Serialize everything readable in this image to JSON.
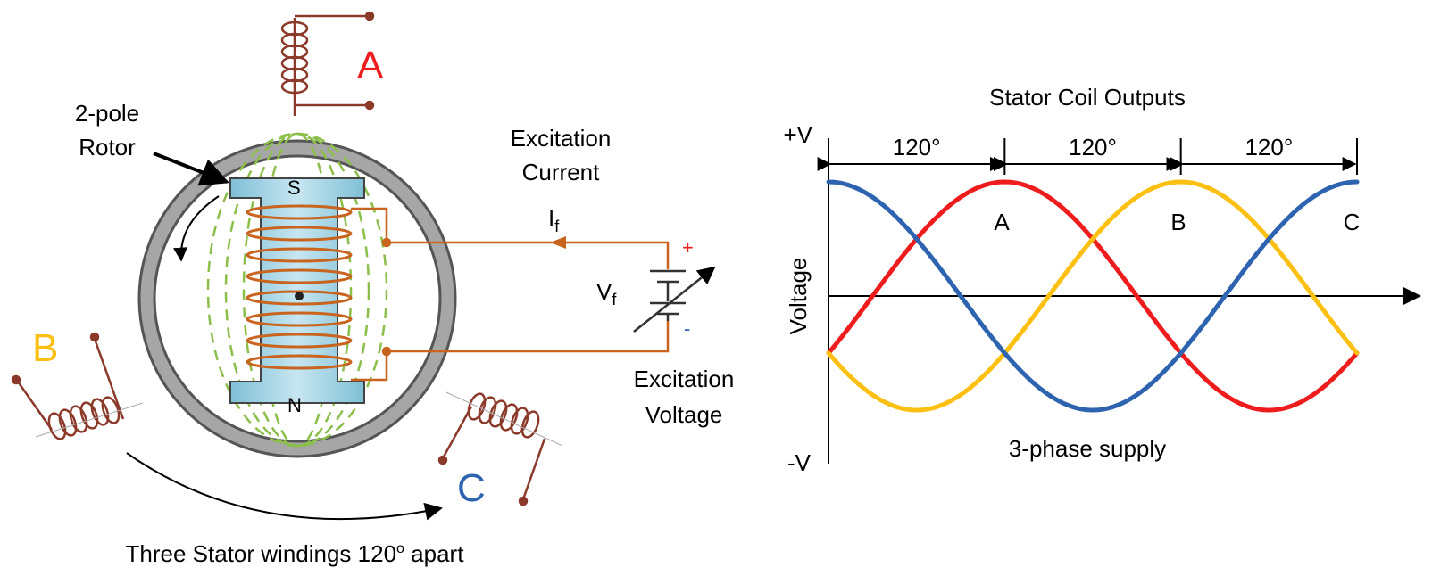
{
  "machine": {
    "rotor_label_line1": "2-pole",
    "rotor_label_line2": "Rotor",
    "pole_s": "S",
    "pole_n": "N",
    "excitation_current_line1": "Excitation",
    "excitation_current_line2": "Current",
    "if_main": "I",
    "if_sub": "f",
    "vf_main": "V",
    "vf_sub": "f",
    "plus": "+",
    "minus": "-",
    "excitation_voltage_line1": "Excitation",
    "excitation_voltage_line2": "Voltage",
    "winding_a": "A",
    "winding_b": "B",
    "winding_c": "C",
    "caption_pre": "Three Stator windings 120",
    "caption_deg": "o",
    "caption_post": " apart"
  },
  "chart": {
    "title": "Stator Coil Outputs",
    "ylabel": "Voltage",
    "ymax_label": "+V",
    "ymin_label": "-V",
    "spans": [
      "120°",
      "120°",
      "120°"
    ],
    "phase_labels": [
      "A",
      "B",
      "C"
    ],
    "caption": "3-phase supply"
  },
  "chart_data": {
    "type": "line",
    "title": "Stator Coil Outputs",
    "ylabel": "Voltage",
    "x_unit": "degrees",
    "xlim": [
      0,
      360
    ],
    "ylim": [
      -1,
      1
    ],
    "tick_labels_y": [
      "+V",
      "-V"
    ],
    "annotations": [
      "120°",
      "120°",
      "120°",
      "3-phase supply"
    ],
    "series": [
      {
        "name": "A",
        "color": "#ee1c1c",
        "x": [
          0,
          30,
          60,
          90,
          120,
          150,
          180,
          210,
          240,
          270,
          300,
          330,
          360
        ],
        "values": [
          -0.5,
          0.0,
          0.5,
          0.866,
          1.0,
          0.866,
          0.5,
          0.0,
          -0.5,
          -0.866,
          -1.0,
          -0.866,
          -0.5
        ]
      },
      {
        "name": "B",
        "color": "#fcc012",
        "x": [
          0,
          30,
          60,
          90,
          120,
          150,
          180,
          210,
          240,
          270,
          300,
          330,
          360
        ],
        "values": [
          -0.5,
          -0.866,
          -1.0,
          -0.866,
          -0.5,
          0.0,
          0.5,
          0.866,
          1.0,
          0.866,
          0.5,
          0.0,
          -0.5
        ]
      },
      {
        "name": "C",
        "color": "#2e63b0",
        "x": [
          0,
          30,
          60,
          90,
          120,
          150,
          180,
          210,
          240,
          270,
          300,
          330,
          360
        ],
        "values": [
          1.0,
          0.866,
          0.5,
          0.0,
          -0.5,
          -0.866,
          -1.0,
          -0.866,
          -0.5,
          0.0,
          0.5,
          0.866,
          1.0
        ]
      }
    ]
  },
  "colors": {
    "wire": "#c8641e",
    "stator_coil": "#8b3a2a",
    "stator_ring": "#a6a6a6",
    "rotor_fill": "#9ccfe0",
    "field_lines": "#8cbe4a",
    "label_a": "#ee1c1c",
    "label_b": "#fcc012",
    "label_c": "#2e63b0"
  }
}
